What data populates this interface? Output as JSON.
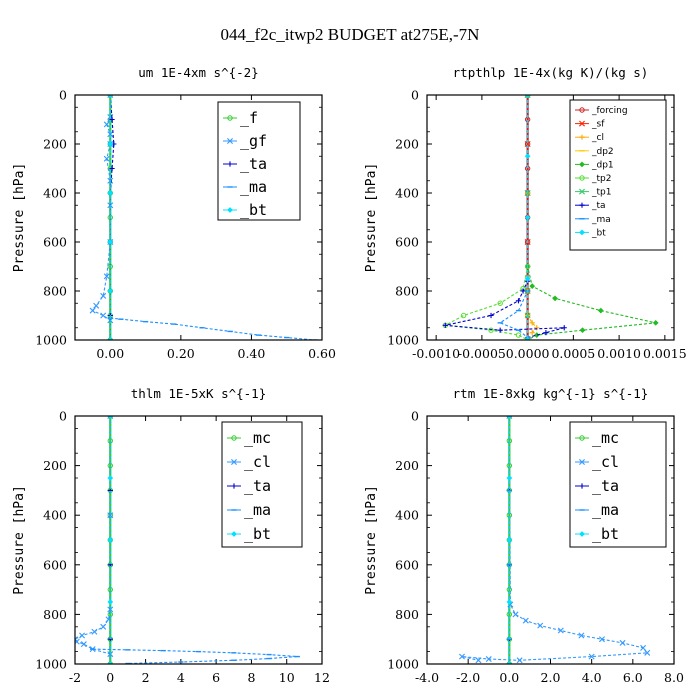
{
  "figure": {
    "title": "044_f2c_itwp2  BUDGET at275E,-7N"
  },
  "chart_data": [
    {
      "type": "line",
      "title": "um  1E-4xm s^{-2}",
      "xlabel": "",
      "ylabel": "Pressure [hPa]",
      "xlim": [
        -0.1,
        0.6
      ],
      "ylim": [
        1000,
        0
      ],
      "xticks": [
        "0.00",
        "0.20",
        "0.40",
        "0.60"
      ],
      "xtick_values": [
        0.0,
        0.2,
        0.4,
        0.6
      ],
      "yticks": [
        "0",
        "200",
        "400",
        "600",
        "800",
        "1000"
      ],
      "ytick_values": [
        0,
        200,
        400,
        600,
        800,
        1000
      ],
      "legend": "top-right",
      "series": [
        {
          "name": "_f",
          "color": "#33cc33",
          "marker": "circle",
          "x": [
            0,
            0,
            0,
            0,
            0,
            0,
            0,
            0,
            0,
            0,
            0
          ],
          "y": [
            0,
            100,
            200,
            300,
            400,
            500,
            600,
            700,
            800,
            900,
            1000
          ]
        },
        {
          "name": "_gf",
          "color": "#3399ff",
          "marker": "x",
          "x": [
            0.0,
            0.0,
            -0.01,
            0.0,
            0.0,
            -0.01,
            0.0,
            0.0,
            0.0,
            -0.01,
            -0.02,
            -0.04,
            -0.05,
            -0.02,
            0.0
          ],
          "y": [
            0,
            90,
            120,
            160,
            200,
            260,
            350,
            450,
            600,
            740,
            820,
            860,
            880,
            900,
            920
          ]
        },
        {
          "name": "_ta",
          "color": "#0000cc",
          "marker": "plus",
          "x": [
            0.0,
            0.005,
            0.01,
            0.005,
            0.0,
            0.0,
            0.0,
            0.0,
            0.0
          ],
          "y": [
            0,
            100,
            200,
            300,
            400,
            600,
            800,
            900,
            1000
          ]
        },
        {
          "name": "_ma",
          "color": "#1a8fff",
          "marker": "dash",
          "x": [
            0.0,
            0.03,
            0.1,
            0.18,
            0.26,
            0.34,
            0.42,
            0.5,
            0.58
          ],
          "y": [
            910,
            915,
            925,
            935,
            950,
            965,
            980,
            990,
            1000
          ]
        },
        {
          "name": "_bt",
          "color": "#00e0ff",
          "marker": "diamond",
          "x": [
            0.0,
            0.0,
            0.0,
            0.0,
            0.0,
            0.0
          ],
          "y": [
            0,
            200,
            400,
            600,
            800,
            1000
          ]
        }
      ]
    },
    {
      "type": "line",
      "title": "rtpthlp  1E-4x(kg K)/(kg s)",
      "xlabel": "",
      "ylabel": "Pressure [hPa]",
      "xlim": [
        -0.0011,
        0.0016
      ],
      "ylim": [
        1000,
        0
      ],
      "xticks": [
        "-0.0010",
        "-0.0005",
        "0.0000",
        "0.0005",
        "0.0010",
        "0.0015"
      ],
      "xtick_values": [
        -0.001,
        -0.0005,
        0.0,
        0.0005,
        0.001,
        0.0015
      ],
      "yticks": [
        "0",
        "200",
        "400",
        "600",
        "800",
        "1000"
      ],
      "ytick_values": [
        0,
        200,
        400,
        600,
        800,
        1000
      ],
      "legend": "top-right",
      "series": [
        {
          "name": "_forcing",
          "color": "#cc2222",
          "marker": "circle",
          "x": [
            0,
            0,
            0,
            0,
            0,
            0,
            0,
            0,
            0,
            0,
            0
          ],
          "y": [
            0,
            100,
            200,
            300,
            400,
            500,
            600,
            700,
            800,
            900,
            1000
          ]
        },
        {
          "name": "_sf",
          "color": "#ff2200",
          "marker": "x",
          "x": [
            0,
            0,
            0,
            0,
            0,
            0
          ],
          "y": [
            0,
            200,
            400,
            600,
            800,
            1000
          ]
        },
        {
          "name": "_cl",
          "color": "#ffaa00",
          "marker": "plus",
          "x": [
            0,
            0,
            0,
            0,
            5e-05,
            0.0001,
            5e-05
          ],
          "y": [
            0,
            400,
            800,
            900,
            930,
            950,
            970
          ]
        },
        {
          "name": "_dp2",
          "color": "#ffcc00",
          "marker": "dash",
          "x": [
            0,
            0,
            0,
            0,
            0
          ],
          "y": [
            0,
            400,
            800,
            900,
            1000
          ]
        },
        {
          "name": "_dp1",
          "color": "#22bb22",
          "marker": "diamond",
          "x": [
            0,
            0,
            5e-05,
            0.0003,
            0.0008,
            0.0014,
            0.0006,
            0.0001,
            0.0
          ],
          "y": [
            0,
            700,
            780,
            830,
            880,
            930,
            960,
            980,
            1000
          ]
        },
        {
          "name": "_tp2",
          "color": "#55dd33",
          "marker": "circle",
          "x": [
            0,
            0,
            -5e-05,
            -0.0003,
            -0.0007,
            -0.0009,
            -0.0004,
            -0.0001,
            0.0
          ],
          "y": [
            0,
            700,
            790,
            850,
            900,
            940,
            960,
            980,
            1000
          ]
        },
        {
          "name": "_tp1",
          "color": "#33cc66",
          "marker": "x",
          "x": [
            0,
            0,
            0.0,
            0.0,
            0.0
          ],
          "y": [
            0,
            400,
            800,
            900,
            1000
          ]
        },
        {
          "name": "_ta",
          "color": "#0000cc",
          "marker": "plus",
          "x": [
            0,
            0,
            -5e-05,
            -0.0001,
            -0.0004,
            -0.0009,
            -0.0003,
            0.0004,
            0.0002,
            0.0
          ],
          "y": [
            0,
            760,
            800,
            840,
            900,
            940,
            960,
            950,
            970,
            990
          ]
        },
        {
          "name": "_ma",
          "color": "#1a8fff",
          "marker": "dash",
          "x": [
            0,
            0,
            -0.0001,
            -0.0003,
            -0.0001,
            0.0
          ],
          "y": [
            0,
            800,
            880,
            930,
            960,
            990
          ]
        },
        {
          "name": "_bt",
          "color": "#00e0ff",
          "marker": "diamond",
          "x": [
            0,
            0,
            0,
            0,
            0
          ],
          "y": [
            0,
            250,
            500,
            750,
            1000
          ]
        }
      ]
    },
    {
      "type": "line",
      "title": "thlm  1E-5xK s^{-1}",
      "xlabel": "",
      "ylabel": "Pressure [hPa]",
      "xlim": [
        -2,
        12
      ],
      "ylim": [
        1000,
        0
      ],
      "xticks": [
        "-2",
        "0",
        "2",
        "4",
        "6",
        "8",
        "10",
        "12"
      ],
      "xtick_values": [
        -2,
        0,
        2,
        4,
        6,
        8,
        10,
        12
      ],
      "yticks": [
        "0",
        "200",
        "400",
        "600",
        "800",
        "1000"
      ],
      "ytick_values": [
        0,
        200,
        400,
        600,
        800,
        1000
      ],
      "legend": "top-right",
      "series": [
        {
          "name": "_mc",
          "color": "#33cc33",
          "marker": "circle",
          "x": [
            0,
            0,
            0,
            0,
            0,
            0,
            0,
            0,
            0,
            0,
            0
          ],
          "y": [
            0,
            100,
            200,
            300,
            400,
            500,
            600,
            700,
            800,
            900,
            1000
          ]
        },
        {
          "name": "_cl",
          "color": "#3399ff",
          "marker": "x",
          "x": [
            0,
            0,
            0,
            -0.1,
            -0.4,
            -0.9,
            -1.6,
            -2.0,
            -1.9,
            -1.5,
            -1.0,
            0.0
          ],
          "y": [
            0,
            400,
            780,
            820,
            850,
            870,
            885,
            900,
            910,
            920,
            940,
            960
          ]
        },
        {
          "name": "_ta",
          "color": "#0000cc",
          "marker": "plus",
          "x": [
            0,
            0,
            0,
            0,
            0
          ],
          "y": [
            0,
            300,
            600,
            900,
            1000
          ]
        },
        {
          "name": "_ma",
          "color": "#1a8fff",
          "marker": "dash",
          "x": [
            -1.0,
            1.0,
            3.0,
            5.0,
            7.0,
            9.0,
            10.6,
            9.0,
            7.0,
            4.0,
            1.0
          ],
          "y": [
            940,
            943,
            946,
            950,
            955,
            962,
            970,
            978,
            985,
            992,
            998
          ]
        },
        {
          "name": "_bt",
          "color": "#00e0ff",
          "marker": "diamond",
          "x": [
            0,
            0,
            0,
            0,
            0
          ],
          "y": [
            0,
            250,
            500,
            750,
            1000
          ]
        }
      ]
    },
    {
      "type": "line",
      "title": "rtm  1E-8xkg kg^{-1} s^{-1}",
      "xlabel": "",
      "ylabel": "Pressure [hPa]",
      "xlim": [
        -4,
        8
      ],
      "ylim": [
        1000,
        0
      ],
      "xticks": [
        "-4.0",
        "-2.0",
        "0.0",
        "2.0",
        "4.0",
        "6.0",
        "8.0"
      ],
      "xtick_values": [
        -4,
        -2,
        0,
        2,
        4,
        6,
        8
      ],
      "yticks": [
        "0",
        "200",
        "400",
        "600",
        "800",
        "1000"
      ],
      "ytick_values": [
        0,
        200,
        400,
        600,
        800,
        1000
      ],
      "legend": "top-right",
      "series": [
        {
          "name": "_mc",
          "color": "#33cc33",
          "marker": "circle",
          "x": [
            0,
            0,
            0,
            0,
            0,
            0,
            0,
            0,
            0,
            0,
            0
          ],
          "y": [
            0,
            100,
            200,
            300,
            400,
            500,
            600,
            700,
            800,
            900,
            1000
          ]
        },
        {
          "name": "_cl",
          "color": "#3399ff",
          "marker": "x",
          "x": [
            0.0,
            0.05,
            0.3,
            0.8,
            1.5,
            2.5,
            3.5,
            4.5,
            5.5,
            6.5,
            6.7,
            4.0,
            0.5,
            -1.0,
            -2.3,
            -1.5
          ],
          "y": [
            0,
            760,
            800,
            825,
            845,
            865,
            885,
            900,
            915,
            935,
            955,
            970,
            985,
            980,
            970,
            985
          ]
        },
        {
          "name": "_ta",
          "color": "#0000cc",
          "marker": "plus",
          "x": [
            0,
            0,
            0,
            0,
            0
          ],
          "y": [
            0,
            300,
            600,
            900,
            1000
          ]
        },
        {
          "name": "_ma",
          "color": "#1a8fff",
          "marker": "dash",
          "x": [
            0,
            0,
            0,
            0,
            0
          ],
          "y": [
            0,
            300,
            600,
            900,
            1000
          ]
        },
        {
          "name": "_bt",
          "color": "#00e0ff",
          "marker": "diamond",
          "x": [
            0,
            0,
            0,
            0,
            0
          ],
          "y": [
            0,
            250,
            500,
            750,
            1000
          ]
        }
      ]
    }
  ]
}
